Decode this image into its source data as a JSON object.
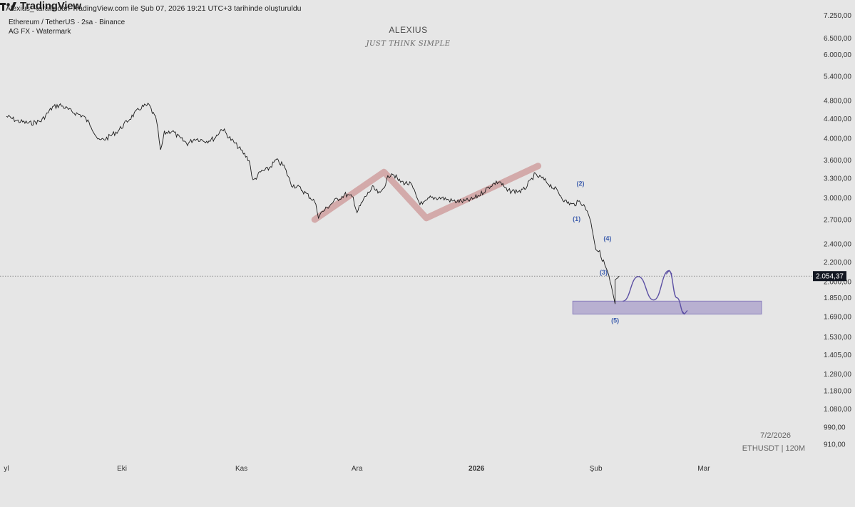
{
  "header": {
    "attribution": "Alexius_ tarafından TradingView.com ile Şub 07, 2026 19:21 UTC+3 tarihinde oluşturuldu",
    "symbol": "Ethereum / TetherUS · 2sa · Binance",
    "indicator": "AG FX - Watermark"
  },
  "watermark": {
    "title": "ALEXIUS",
    "subtitle": "JUST THINK SIMPLE"
  },
  "info": {
    "date": "7/2/2026",
    "symbol_tf": "ETHUSDT | 120M"
  },
  "logo": {
    "text": "TradingView"
  },
  "colors": {
    "background": "#e6e6e6",
    "price_line": "#1a1a1a",
    "zigzag": "#c98a8a",
    "support_box": "#9f93c6",
    "projection": "#5b4fa3",
    "wave_labels": "#3f5fae",
    "price_badge": "#131722"
  },
  "chart_data": {
    "type": "line",
    "y_scale": "log",
    "ylim": [
      850,
      7600
    ],
    "y_ticks": [
      {
        "v": 7250,
        "label": "7.250,00"
      },
      {
        "v": 6500,
        "label": "6.500,00"
      },
      {
        "v": 6000,
        "label": "6.000,00"
      },
      {
        "v": 5400,
        "label": "5.400,00"
      },
      {
        "v": 4800,
        "label": "4.800,00"
      },
      {
        "v": 4400,
        "label": "4.400,00"
      },
      {
        "v": 4000,
        "label": "4.000,00"
      },
      {
        "v": 3600,
        "label": "3.600,00"
      },
      {
        "v": 3300,
        "label": "3.300,00"
      },
      {
        "v": 3000,
        "label": "3.000,00"
      },
      {
        "v": 2700,
        "label": "2.700,00"
      },
      {
        "v": 2400,
        "label": "2.400,00"
      },
      {
        "v": 2200,
        "label": "2.200,00"
      },
      {
        "v": 2000,
        "label": "2.000,00"
      },
      {
        "v": 1850,
        "label": "1.850,00"
      },
      {
        "v": 1690,
        "label": "1.690,00"
      },
      {
        "v": 1530,
        "label": "1.530,00"
      },
      {
        "v": 1405,
        "label": "1.405,00"
      },
      {
        "v": 1280,
        "label": "1.280,00"
      },
      {
        "v": 1180,
        "label": "1.180,00"
      },
      {
        "v": 1080,
        "label": "1.080,00"
      },
      {
        "v": 990,
        "label": "990,00"
      },
      {
        "v": 910,
        "label": "910,00"
      }
    ],
    "x_ticks": [
      {
        "date": "2025-09-01",
        "label": "yl",
        "bold": false
      },
      {
        "date": "2025-10-01",
        "label": "Eki",
        "bold": false
      },
      {
        "date": "2025-11-01",
        "label": "Kas",
        "bold": false
      },
      {
        "date": "2025-12-01",
        "label": "Ara",
        "bold": false
      },
      {
        "date": "2026-01-01",
        "label": "2026",
        "bold": true
      },
      {
        "date": "2026-02-01",
        "label": "Şub",
        "bold": false
      },
      {
        "date": "2026-03-01",
        "label": "Mar",
        "bold": false
      }
    ],
    "xlim": [
      "2025-09-01",
      "2026-03-31"
    ],
    "current_price": {
      "value": 2054.37,
      "label": "2.054,37"
    },
    "series": [
      {
        "points": [
          [
            "2025-09-01",
            4450
          ],
          [
            "2025-09-04",
            4350
          ],
          [
            "2025-09-07",
            4300
          ],
          [
            "2025-09-10",
            4350
          ],
          [
            "2025-09-13",
            4650
          ],
          [
            "2025-09-15",
            4700
          ],
          [
            "2025-09-18",
            4550
          ],
          [
            "2025-09-21",
            4450
          ],
          [
            "2025-09-23",
            4250
          ],
          [
            "2025-09-25",
            3950
          ],
          [
            "2025-09-27",
            4000
          ],
          [
            "2025-09-30",
            4150
          ],
          [
            "2025-10-03",
            4400
          ],
          [
            "2025-10-06",
            4650
          ],
          [
            "2025-10-08",
            4700
          ],
          [
            "2025-10-10",
            4350
          ],
          [
            "2025-10-11",
            3750
          ],
          [
            "2025-10-12",
            4100
          ],
          [
            "2025-10-14",
            4150
          ],
          [
            "2025-10-16",
            4000
          ],
          [
            "2025-10-18",
            3900
          ],
          [
            "2025-10-20",
            4000
          ],
          [
            "2025-10-23",
            3950
          ],
          [
            "2025-10-25",
            4000
          ],
          [
            "2025-10-27",
            4200
          ],
          [
            "2025-10-29",
            4000
          ],
          [
            "2025-10-31",
            3850
          ],
          [
            "2025-11-03",
            3600
          ],
          [
            "2025-11-04",
            3250
          ],
          [
            "2025-11-06",
            3400
          ],
          [
            "2025-11-08",
            3450
          ],
          [
            "2025-11-10",
            3600
          ],
          [
            "2025-11-12",
            3500
          ],
          [
            "2025-11-14",
            3200
          ],
          [
            "2025-11-16",
            3150
          ],
          [
            "2025-11-18",
            3050
          ],
          [
            "2025-11-20",
            2950
          ],
          [
            "2025-11-21",
            2750
          ],
          [
            "2025-11-22",
            2800
          ],
          [
            "2025-11-25",
            2950
          ],
          [
            "2025-11-28",
            3050
          ],
          [
            "2025-11-30",
            3000
          ],
          [
            "2025-12-01",
            2800
          ],
          [
            "2025-12-03",
            3000
          ],
          [
            "2025-12-05",
            3150
          ],
          [
            "2025-12-07",
            3050
          ],
          [
            "2025-12-09",
            3300
          ],
          [
            "2025-12-10",
            3400
          ],
          [
            "2025-12-12",
            3250
          ],
          [
            "2025-12-15",
            3200
          ],
          [
            "2025-12-17",
            2950
          ],
          [
            "2025-12-18",
            2900
          ],
          [
            "2025-12-20",
            3000
          ],
          [
            "2025-12-23",
            3000
          ],
          [
            "2025-12-26",
            2950
          ],
          [
            "2025-12-29",
            2950
          ],
          [
            "2025-12-31",
            2980
          ],
          [
            "2026-01-02",
            3050
          ],
          [
            "2026-01-05",
            3200
          ],
          [
            "2026-01-07",
            3250
          ],
          [
            "2026-01-09",
            3100
          ],
          [
            "2026-01-11",
            3100
          ],
          [
            "2026-01-13",
            3100
          ],
          [
            "2026-01-15",
            3250
          ],
          [
            "2026-01-16",
            3350
          ],
          [
            "2026-01-18",
            3300
          ],
          [
            "2026-01-20",
            3200
          ],
          [
            "2026-01-22",
            3100
          ],
          [
            "2026-01-24",
            2950
          ],
          [
            "2026-01-26",
            2900
          ],
          [
            "2026-01-28",
            2950
          ],
          [
            "2026-01-30",
            2800
          ],
          [
            "2026-01-31",
            2600
          ],
          [
            "2026-02-01",
            2350
          ],
          [
            "2026-02-02",
            2300
          ],
          [
            "2026-02-03",
            2200
          ],
          [
            "2026-02-04",
            2100
          ],
          [
            "2026-02-05",
            1950
          ],
          [
            "2026-02-06",
            1780
          ],
          [
            "2026-02-06",
            2000
          ],
          [
            "2026-02-07",
            2054
          ]
        ]
      }
    ],
    "wave_labels": [
      {
        "text": "(1)",
        "date": "2026-01-27",
        "price": 2680
      },
      {
        "text": "(2)",
        "date": "2026-01-28",
        "price": 3180
      },
      {
        "text": "(3)",
        "date": "2026-02-03",
        "price": 2070
      },
      {
        "text": "(4)",
        "date": "2026-02-04",
        "price": 2440
      },
      {
        "text": "(5)",
        "date": "2026-02-06",
        "price": 1640
      }
    ],
    "zigzag": [
      [
        "2025-11-20",
        2700
      ],
      [
        "2025-12-08",
        3400
      ],
      [
        "2025-12-19",
        2720
      ],
      [
        "2026-01-17",
        3500
      ]
    ],
    "support_zone": {
      "from": "2026-01-26",
      "to": "2026-03-16",
      "low": 1710,
      "high": 1820
    },
    "projection": [
      [
        "2026-02-08",
        1820
      ],
      [
        "2026-02-12",
        2050
      ],
      [
        "2026-02-16",
        1830
      ],
      [
        "2026-02-20",
        2110
      ],
      [
        "2026-02-22",
        1850
      ],
      [
        "2026-02-24",
        1710
      ]
    ]
  }
}
